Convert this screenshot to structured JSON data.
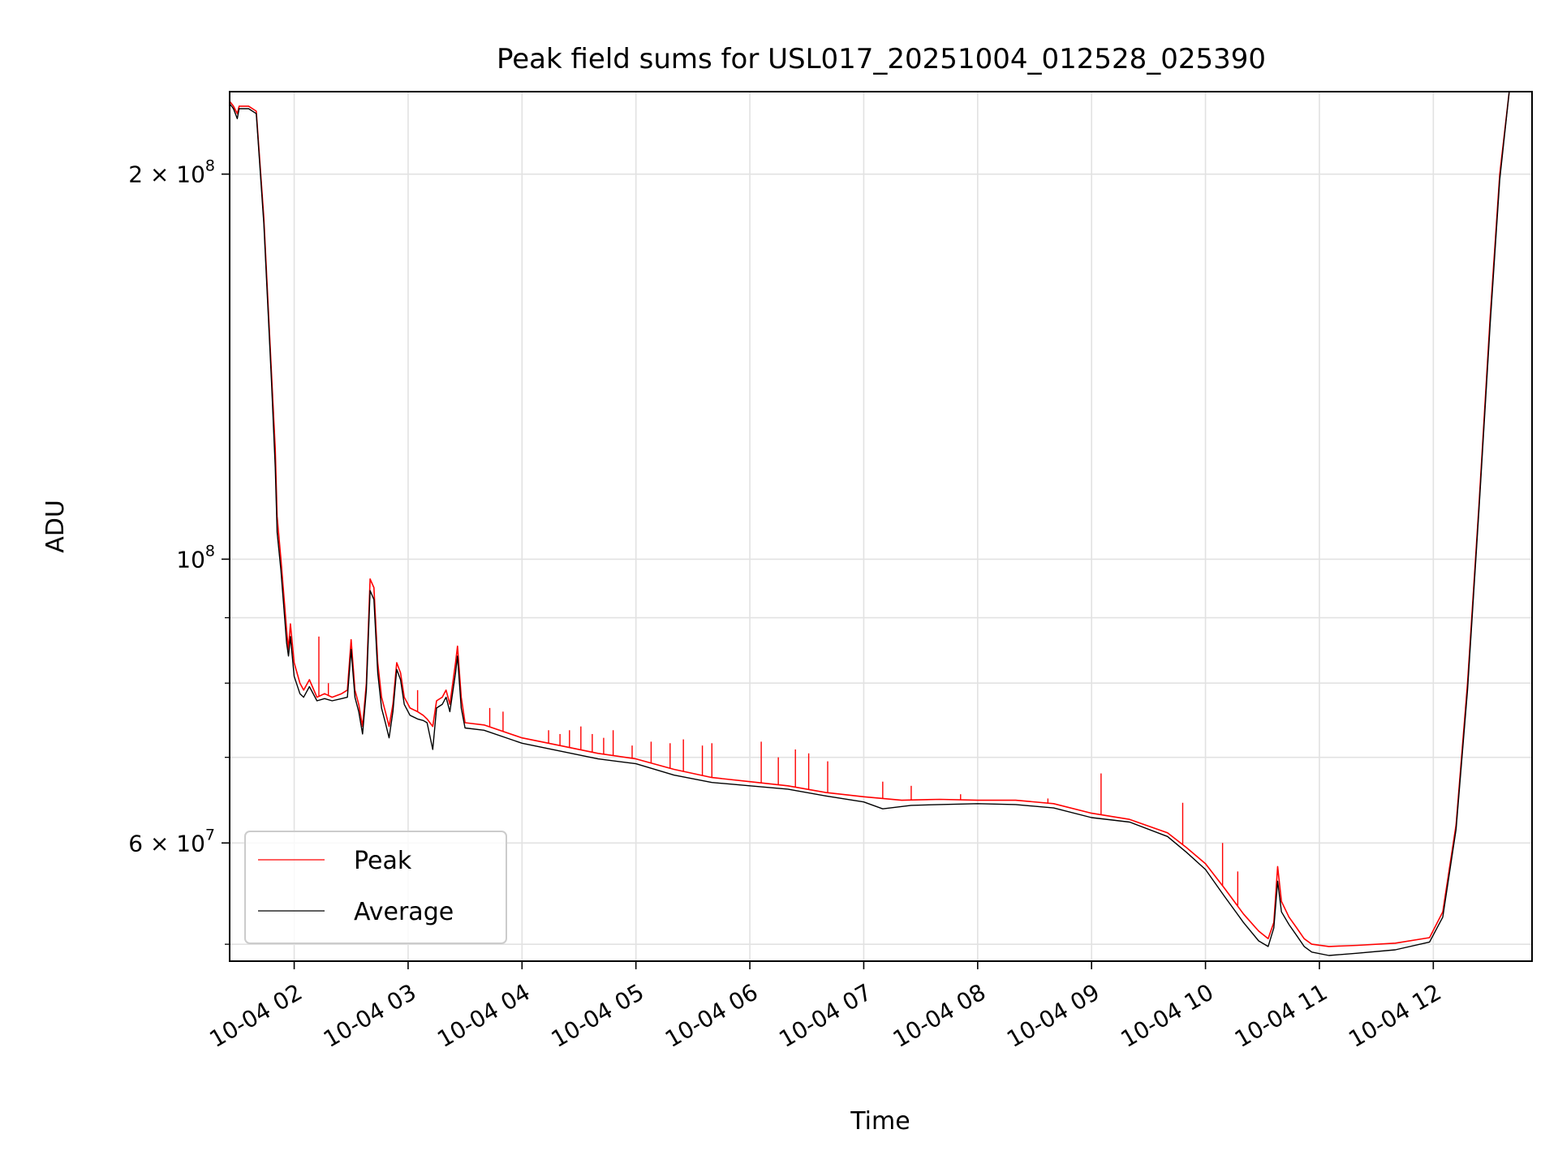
{
  "chart_data": {
    "type": "line",
    "title": "Peak field sums for USL017_20251004_012528_025390",
    "xlabel": "Time",
    "ylabel": "ADU",
    "x_unit": "datetime",
    "xlim": [
      "2025-10-04T01:26",
      "2025-10-04T12:52"
    ],
    "y_scale": "log",
    "ylim": [
      48500000,
      232000000
    ],
    "grid": true,
    "legend_position": "lower-left",
    "x_ticks": [
      {
        "value": "2025-10-04T02:00",
        "label": "10-04 02"
      },
      {
        "value": "2025-10-04T03:00",
        "label": "10-04 03"
      },
      {
        "value": "2025-10-04T04:00",
        "label": "10-04 04"
      },
      {
        "value": "2025-10-04T05:00",
        "label": "10-04 05"
      },
      {
        "value": "2025-10-04T06:00",
        "label": "10-04 06"
      },
      {
        "value": "2025-10-04T07:00",
        "label": "10-04 07"
      },
      {
        "value": "2025-10-04T08:00",
        "label": "10-04 08"
      },
      {
        "value": "2025-10-04T09:00",
        "label": "10-04 09"
      },
      {
        "value": "2025-10-04T10:00",
        "label": "10-04 10"
      },
      {
        "value": "2025-10-04T11:00",
        "label": "10-04 11"
      },
      {
        "value": "2025-10-04T12:00",
        "label": "10-04 12"
      }
    ],
    "y_major_ticks": [
      {
        "value": 60000000,
        "mantissa": "6",
        "times": "×",
        "base": "10",
        "exp": "7"
      },
      {
        "value": 100000000,
        "mantissa": "",
        "times": "",
        "base": "10",
        "exp": "8"
      },
      {
        "value": 200000000,
        "mantissa": "2",
        "times": "×",
        "base": "10",
        "exp": "8"
      }
    ],
    "y_minor_ticks": [
      50000000,
      70000000,
      80000000,
      90000000,
      300000000
    ],
    "series": [
      {
        "name": "Peak",
        "color": "#ff0000",
        "points": [
          [
            "2025-10-04T01:26",
            228000000
          ],
          [
            "2025-10-04T01:28",
            226000000
          ],
          [
            "2025-10-04T01:30",
            223000000
          ],
          [
            "2025-10-04T01:31",
            226000000
          ],
          [
            "2025-10-04T01:36",
            226000000
          ],
          [
            "2025-10-04T01:40",
            224000000
          ],
          [
            "2025-10-04T01:44",
            185000000
          ],
          [
            "2025-10-04T01:48",
            140000000
          ],
          [
            "2025-10-04T01:50",
            122000000
          ],
          [
            "2025-10-04T01:51",
            108000000
          ],
          [
            "2025-10-04T01:53",
            100000000
          ],
          [
            "2025-10-04T01:55",
            92000000
          ],
          [
            "2025-10-04T01:56",
            88000000
          ],
          [
            "2025-10-04T01:57",
            85000000
          ],
          [
            "2025-10-04T01:58",
            89000000
          ],
          [
            "2025-10-04T02:00",
            83000000
          ],
          [
            "2025-10-04T02:03",
            80000000
          ],
          [
            "2025-10-04T02:05",
            79000000
          ],
          [
            "2025-10-04T02:08",
            80500000
          ],
          [
            "2025-10-04T02:12",
            78000000
          ],
          [
            "2025-10-04T02:16",
            78500000
          ],
          [
            "2025-10-04T02:20",
            78000000
          ],
          [
            "2025-10-04T02:25",
            78500000
          ],
          [
            "2025-10-04T02:28",
            79000000
          ],
          [
            "2025-10-04T02:30",
            86500000
          ],
          [
            "2025-10-04T02:32",
            79000000
          ],
          [
            "2025-10-04T02:34",
            77000000
          ],
          [
            "2025-10-04T02:36",
            74000000
          ],
          [
            "2025-10-04T02:38",
            80000000
          ],
          [
            "2025-10-04T02:40",
            96500000
          ],
          [
            "2025-10-04T02:42",
            95000000
          ],
          [
            "2025-10-04T02:44",
            83000000
          ],
          [
            "2025-10-04T02:46",
            78000000
          ],
          [
            "2025-10-04T02:48",
            76000000
          ],
          [
            "2025-10-04T02:50",
            74000000
          ],
          [
            "2025-10-04T02:52",
            77000000
          ],
          [
            "2025-10-04T02:54",
            83000000
          ],
          [
            "2025-10-04T02:56",
            81500000
          ],
          [
            "2025-10-04T02:58",
            78000000
          ],
          [
            "2025-10-04T03:01",
            76500000
          ],
          [
            "2025-10-04T03:05",
            76000000
          ],
          [
            "2025-10-04T03:08",
            75500000
          ],
          [
            "2025-10-04T03:10",
            75000000
          ],
          [
            "2025-10-04T03:13",
            74000000
          ],
          [
            "2025-10-04T03:15",
            77500000
          ],
          [
            "2025-10-04T03:18",
            78000000
          ],
          [
            "2025-10-04T03:20",
            79000000
          ],
          [
            "2025-10-04T03:22",
            77000000
          ],
          [
            "2025-10-04T03:25",
            83000000
          ],
          [
            "2025-10-04T03:26",
            85500000
          ],
          [
            "2025-10-04T03:28",
            78000000
          ],
          [
            "2025-10-04T03:30",
            74500000
          ],
          [
            "2025-10-04T03:40",
            74200000
          ],
          [
            "2025-10-04T04:00",
            72500000
          ],
          [
            "2025-10-04T04:20",
            71500000
          ],
          [
            "2025-10-04T04:40",
            70500000
          ],
          [
            "2025-10-04T05:00",
            69800000
          ],
          [
            "2025-10-04T05:20",
            68500000
          ],
          [
            "2025-10-04T05:40",
            67500000
          ],
          [
            "2025-10-04T06:00",
            67000000
          ],
          [
            "2025-10-04T06:20",
            66500000
          ],
          [
            "2025-10-04T06:40",
            65700000
          ],
          [
            "2025-10-04T07:00",
            65200000
          ],
          [
            "2025-10-04T07:20",
            64800000
          ],
          [
            "2025-10-04T07:40",
            64900000
          ],
          [
            "2025-10-04T08:00",
            64800000
          ],
          [
            "2025-10-04T08:20",
            64800000
          ],
          [
            "2025-10-04T08:40",
            64400000
          ],
          [
            "2025-10-04T09:00",
            63300000
          ],
          [
            "2025-10-04T09:20",
            62600000
          ],
          [
            "2025-10-04T09:40",
            61100000
          ],
          [
            "2025-10-04T09:50",
            59500000
          ],
          [
            "2025-10-04T10:00",
            57800000
          ],
          [
            "2025-10-04T10:10",
            55300000
          ],
          [
            "2025-10-04T10:20",
            52800000
          ],
          [
            "2025-10-04T10:28",
            51200000
          ],
          [
            "2025-10-04T10:33",
            50500000
          ],
          [
            "2025-10-04T10:36",
            52000000
          ],
          [
            "2025-10-04T10:38",
            57500000
          ],
          [
            "2025-10-04T10:40",
            54000000
          ],
          [
            "2025-10-04T10:44",
            52500000
          ],
          [
            "2025-10-04T10:48",
            51500000
          ],
          [
            "2025-10-04T10:52",
            50500000
          ],
          [
            "2025-10-04T10:56",
            50000000
          ],
          [
            "2025-10-04T11:05",
            49800000
          ],
          [
            "2025-10-04T11:20",
            49900000
          ],
          [
            "2025-10-04T11:40",
            50100000
          ],
          [
            "2025-10-04T11:58",
            50600000
          ],
          [
            "2025-10-04T12:05",
            53000000
          ],
          [
            "2025-10-04T12:12",
            62000000
          ],
          [
            "2025-10-04T12:18",
            80000000
          ],
          [
            "2025-10-04T12:24",
            110000000
          ],
          [
            "2025-10-04T12:30",
            155000000
          ],
          [
            "2025-10-04T12:35",
            200000000
          ],
          [
            "2025-10-04T12:40",
            232000000
          ],
          [
            "2025-10-04T12:52",
            232000000
          ]
        ],
        "spikes": [
          [
            "2025-10-04T02:13",
            87000000
          ],
          [
            "2025-10-04T02:18",
            80000000
          ],
          [
            "2025-10-04T03:05",
            79000000
          ],
          [
            "2025-10-04T03:43",
            76500000
          ],
          [
            "2025-10-04T03:50",
            76000000
          ],
          [
            "2025-10-04T04:14",
            73500000
          ],
          [
            "2025-10-04T04:20",
            73000000
          ],
          [
            "2025-10-04T04:25",
            73500000
          ],
          [
            "2025-10-04T04:31",
            74000000
          ],
          [
            "2025-10-04T04:37",
            73000000
          ],
          [
            "2025-10-04T04:43",
            72500000
          ],
          [
            "2025-10-04T04:48",
            73500000
          ],
          [
            "2025-10-04T04:58",
            71500000
          ],
          [
            "2025-10-04T05:08",
            72000000
          ],
          [
            "2025-10-04T05:18",
            71800000
          ],
          [
            "2025-10-04T05:25",
            72300000
          ],
          [
            "2025-10-04T05:35",
            71500000
          ],
          [
            "2025-10-04T05:40",
            71800000
          ],
          [
            "2025-10-04T06:06",
            72000000
          ],
          [
            "2025-10-04T06:15",
            70000000
          ],
          [
            "2025-10-04T06:24",
            71000000
          ],
          [
            "2025-10-04T06:31",
            70500000
          ],
          [
            "2025-10-04T06:41",
            69500000
          ],
          [
            "2025-10-04T07:10",
            67000000
          ],
          [
            "2025-10-04T07:25",
            66500000
          ],
          [
            "2025-10-04T07:51",
            65500000
          ],
          [
            "2025-10-04T08:37",
            65000000
          ],
          [
            "2025-10-04T09:05",
            68000000
          ],
          [
            "2025-10-04T09:48",
            64500000
          ],
          [
            "2025-10-04T10:09",
            60000000
          ],
          [
            "2025-10-04T10:17",
            57000000
          ]
        ]
      },
      {
        "name": "Average",
        "color": "#000000",
        "points": [
          [
            "2025-10-04T01:26",
            227000000
          ],
          [
            "2025-10-04T01:28",
            225000000
          ],
          [
            "2025-10-04T01:30",
            221000000
          ],
          [
            "2025-10-04T01:31",
            225000000
          ],
          [
            "2025-10-04T01:36",
            225000000
          ],
          [
            "2025-10-04T01:40",
            223000000
          ],
          [
            "2025-10-04T01:44",
            183000000
          ],
          [
            "2025-10-04T01:48",
            138000000
          ],
          [
            "2025-10-04T01:50",
            118000000
          ],
          [
            "2025-10-04T01:51",
            105000000
          ],
          [
            "2025-10-04T01:53",
            98000000
          ],
          [
            "2025-10-04T01:55",
            90000000
          ],
          [
            "2025-10-04T01:56",
            86000000
          ],
          [
            "2025-10-04T01:57",
            84000000
          ],
          [
            "2025-10-04T01:58",
            87000000
          ],
          [
            "2025-10-04T02:00",
            81000000
          ],
          [
            "2025-10-04T02:03",
            78500000
          ],
          [
            "2025-10-04T02:05",
            78000000
          ],
          [
            "2025-10-04T02:08",
            79500000
          ],
          [
            "2025-10-04T02:12",
            77500000
          ],
          [
            "2025-10-04T02:16",
            77800000
          ],
          [
            "2025-10-04T02:20",
            77500000
          ],
          [
            "2025-10-04T02:25",
            77800000
          ],
          [
            "2025-10-04T02:28",
            78000000
          ],
          [
            "2025-10-04T02:30",
            85000000
          ],
          [
            "2025-10-04T02:32",
            78000000
          ],
          [
            "2025-10-04T02:34",
            76000000
          ],
          [
            "2025-10-04T02:36",
            73000000
          ],
          [
            "2025-10-04T02:38",
            79000000
          ],
          [
            "2025-10-04T02:40",
            94500000
          ],
          [
            "2025-10-04T02:42",
            93000000
          ],
          [
            "2025-10-04T02:44",
            81500000
          ],
          [
            "2025-10-04T02:46",
            76500000
          ],
          [
            "2025-10-04T02:48",
            74500000
          ],
          [
            "2025-10-04T02:50",
            72500000
          ],
          [
            "2025-10-04T02:52",
            76000000
          ],
          [
            "2025-10-04T02:54",
            82000000
          ],
          [
            "2025-10-04T02:56",
            80500000
          ],
          [
            "2025-10-04T02:58",
            77000000
          ],
          [
            "2025-10-04T03:01",
            75500000
          ],
          [
            "2025-10-04T03:05",
            75000000
          ],
          [
            "2025-10-04T03:08",
            74800000
          ],
          [
            "2025-10-04T03:10",
            74500000
          ],
          [
            "2025-10-04T03:13",
            71000000
          ],
          [
            "2025-10-04T03:15",
            76500000
          ],
          [
            "2025-10-04T03:18",
            77000000
          ],
          [
            "2025-10-04T03:20",
            78000000
          ],
          [
            "2025-10-04T03:22",
            76000000
          ],
          [
            "2025-10-04T03:25",
            81500000
          ],
          [
            "2025-10-04T03:26",
            84000000
          ],
          [
            "2025-10-04T03:28",
            76500000
          ],
          [
            "2025-10-04T03:30",
            73800000
          ],
          [
            "2025-10-04T03:40",
            73500000
          ],
          [
            "2025-10-04T04:00",
            71800000
          ],
          [
            "2025-10-04T04:20",
            70800000
          ],
          [
            "2025-10-04T04:40",
            69800000
          ],
          [
            "2025-10-04T05:00",
            69200000
          ],
          [
            "2025-10-04T05:20",
            67800000
          ],
          [
            "2025-10-04T05:40",
            66900000
          ],
          [
            "2025-10-04T06:00",
            66500000
          ],
          [
            "2025-10-04T06:20",
            66100000
          ],
          [
            "2025-10-04T06:40",
            65300000
          ],
          [
            "2025-10-04T07:00",
            64600000
          ],
          [
            "2025-10-04T07:10",
            63800000
          ],
          [
            "2025-10-04T07:25",
            64200000
          ],
          [
            "2025-10-04T07:40",
            64300000
          ],
          [
            "2025-10-04T08:00",
            64400000
          ],
          [
            "2025-10-04T08:20",
            64300000
          ],
          [
            "2025-10-04T08:40",
            63900000
          ],
          [
            "2025-10-04T09:00",
            62800000
          ],
          [
            "2025-10-04T09:20",
            62300000
          ],
          [
            "2025-10-04T09:40",
            60700000
          ],
          [
            "2025-10-04T09:50",
            59000000
          ],
          [
            "2025-10-04T10:00",
            57200000
          ],
          [
            "2025-10-04T10:10",
            54500000
          ],
          [
            "2025-10-04T10:20",
            52000000
          ],
          [
            "2025-10-04T10:28",
            50300000
          ],
          [
            "2025-10-04T10:33",
            49800000
          ],
          [
            "2025-10-04T10:36",
            51500000
          ],
          [
            "2025-10-04T10:38",
            56000000
          ],
          [
            "2025-10-04T10:40",
            53000000
          ],
          [
            "2025-10-04T10:44",
            51800000
          ],
          [
            "2025-10-04T10:48",
            50800000
          ],
          [
            "2025-10-04T10:52",
            49800000
          ],
          [
            "2025-10-04T10:56",
            49300000
          ],
          [
            "2025-10-04T11:05",
            49000000
          ],
          [
            "2025-10-04T11:20",
            49200000
          ],
          [
            "2025-10-04T11:40",
            49500000
          ],
          [
            "2025-10-04T11:58",
            50200000
          ],
          [
            "2025-10-04T12:05",
            52500000
          ],
          [
            "2025-10-04T12:12",
            61500000
          ],
          [
            "2025-10-04T12:18",
            79000000
          ],
          [
            "2025-10-04T12:24",
            109000000
          ],
          [
            "2025-10-04T12:30",
            153000000
          ],
          [
            "2025-10-04T12:35",
            198000000
          ],
          [
            "2025-10-04T12:40",
            232000000
          ],
          [
            "2025-10-04T12:52",
            232000000
          ]
        ]
      }
    ]
  }
}
